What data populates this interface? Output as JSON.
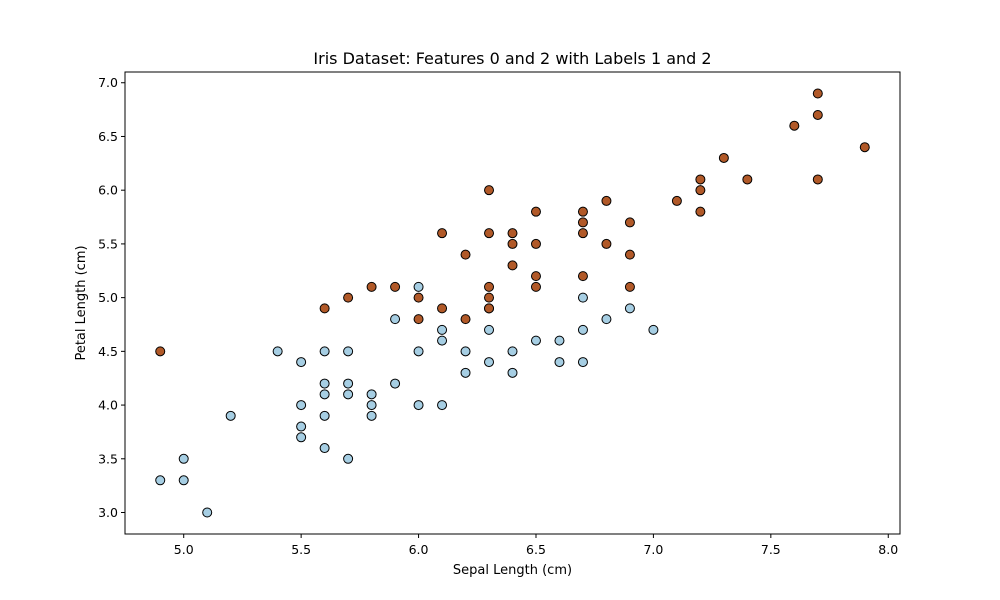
{
  "colors": {
    "class_1": "#a6cee3",
    "class_2": "#b15928",
    "edge": "#000000"
  },
  "chart_data": {
    "type": "scatter",
    "title": "Iris Dataset: Features 0 and 2 with Labels 1 and 2",
    "xlabel": "Sepal Length (cm)",
    "ylabel": "Petal Length (cm)",
    "xlim": [
      4.75,
      8.05
    ],
    "ylim": [
      2.8,
      7.1
    ],
    "xticks": [
      "5.0",
      "5.5",
      "6.0",
      "6.5",
      "7.0",
      "7.5",
      "8.0"
    ],
    "yticks": [
      "3.0",
      "3.5",
      "4.0",
      "4.5",
      "5.0",
      "5.5",
      "6.0",
      "6.5",
      "7.0"
    ],
    "grid": false,
    "legend": "none",
    "series": [
      {
        "color": "#a6cee3",
        "points": [
          [
            4.9,
            3.3
          ],
          [
            5.0,
            3.5
          ],
          [
            5.0,
            3.3
          ],
          [
            5.1,
            3.0
          ],
          [
            5.2,
            3.9
          ],
          [
            5.4,
            4.5
          ],
          [
            5.5,
            4.4
          ],
          [
            5.5,
            4.0
          ],
          [
            5.5,
            3.8
          ],
          [
            5.5,
            3.7
          ],
          [
            5.6,
            4.5
          ],
          [
            5.6,
            4.2
          ],
          [
            5.6,
            4.1
          ],
          [
            5.6,
            3.9
          ],
          [
            5.6,
            3.6
          ],
          [
            5.7,
            4.5
          ],
          [
            5.7,
            4.2
          ],
          [
            5.7,
            4.1
          ],
          [
            5.7,
            3.5
          ],
          [
            5.8,
            4.1
          ],
          [
            5.8,
            4.0
          ],
          [
            5.8,
            3.9
          ],
          [
            5.9,
            4.8
          ],
          [
            5.9,
            4.2
          ],
          [
            6.0,
            5.1
          ],
          [
            6.0,
            4.5
          ],
          [
            6.0,
            4.0
          ],
          [
            6.1,
            4.7
          ],
          [
            6.1,
            4.6
          ],
          [
            6.1,
            4.0
          ],
          [
            6.2,
            4.5
          ],
          [
            6.2,
            4.3
          ],
          [
            6.3,
            4.9
          ],
          [
            6.3,
            4.7
          ],
          [
            6.3,
            4.4
          ],
          [
            6.4,
            4.5
          ],
          [
            6.4,
            4.3
          ],
          [
            6.5,
            4.6
          ],
          [
            6.6,
            4.6
          ],
          [
            6.6,
            4.4
          ],
          [
            6.7,
            5.0
          ],
          [
            6.7,
            4.7
          ],
          [
            6.7,
            4.4
          ],
          [
            6.8,
            4.8
          ],
          [
            6.9,
            4.9
          ],
          [
            7.0,
            4.7
          ]
        ]
      },
      {
        "color": "#b15928",
        "points": [
          [
            4.9,
            4.5
          ],
          [
            5.6,
            4.9
          ],
          [
            5.7,
            5.0
          ],
          [
            5.8,
            5.1
          ],
          [
            5.9,
            5.1
          ],
          [
            6.0,
            5.0
          ],
          [
            6.0,
            4.8
          ],
          [
            6.1,
            5.6
          ],
          [
            6.1,
            4.9
          ],
          [
            6.2,
            5.4
          ],
          [
            6.2,
            4.8
          ],
          [
            6.3,
            6.0
          ],
          [
            6.3,
            5.6
          ],
          [
            6.3,
            5.1
          ],
          [
            6.3,
            5.0
          ],
          [
            6.3,
            4.9
          ],
          [
            6.4,
            5.6
          ],
          [
            6.4,
            5.5
          ],
          [
            6.4,
            5.3
          ],
          [
            6.5,
            5.8
          ],
          [
            6.5,
            5.5
          ],
          [
            6.5,
            5.2
          ],
          [
            6.5,
            5.1
          ],
          [
            6.7,
            5.8
          ],
          [
            6.7,
            5.7
          ],
          [
            6.7,
            5.6
          ],
          [
            6.7,
            5.2
          ],
          [
            6.8,
            5.9
          ],
          [
            6.8,
            5.5
          ],
          [
            6.9,
            5.7
          ],
          [
            6.9,
            5.4
          ],
          [
            6.9,
            5.1
          ],
          [
            7.1,
            5.9
          ],
          [
            7.2,
            6.1
          ],
          [
            7.2,
            6.0
          ],
          [
            7.2,
            5.8
          ],
          [
            7.3,
            6.3
          ],
          [
            7.4,
            6.1
          ],
          [
            7.6,
            6.6
          ],
          [
            7.7,
            6.9
          ],
          [
            7.7,
            6.7
          ],
          [
            7.7,
            6.1
          ],
          [
            7.9,
            6.4
          ]
        ]
      }
    ]
  }
}
